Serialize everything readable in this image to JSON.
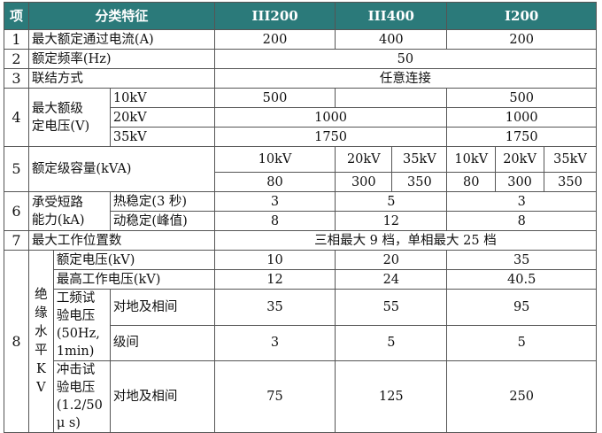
{
  "header": {
    "col_no": "项",
    "col_feature": "分类特征",
    "col_a": "III200",
    "col_b": "III400",
    "col_c": "I200"
  },
  "r1": {
    "no": "1",
    "label": "最大额定通过电流(A)",
    "a": "200",
    "b": "400",
    "c": "200"
  },
  "r2": {
    "no": "2",
    "label": "额定频率(Hz)",
    "all": "50"
  },
  "r3": {
    "no": "3",
    "label": "联结方式",
    "all": "任意连接"
  },
  "r4": {
    "no": "4",
    "label1": "最大额级",
    "label2": "定电压(V)",
    "kv10": "10kV",
    "kv20": "20kV",
    "kv35": "35kV",
    "v10a": "500",
    "v10c": "500",
    "v20bc": "1000",
    "v20c": "1000",
    "v35bc": "1750",
    "v35c": "1750"
  },
  "r5": {
    "no": "5",
    "label": "额定级容量(kVA)",
    "h1": "10kV",
    "h2": "20kV",
    "h3": "35kV",
    "h4": "10kV",
    "h5": "20kV",
    "h6": "35kV",
    "v1": "80",
    "v2": "300",
    "v3": "350",
    "v4": "80",
    "v5": "300",
    "v6": "350"
  },
  "r6": {
    "no": "6",
    "label1": "承受短路",
    "label2": "能力(kA)",
    "sub1": "热稳定(3 秒)",
    "sub2": "动稳定(峰值)",
    "a1": "3",
    "b1": "5",
    "c1": "3",
    "a2": "8",
    "b2": "12",
    "c2": "8"
  },
  "r7": {
    "no": "7",
    "label": "最大工作位置数",
    "all": "三相最大 9 档，单相最大 25 档"
  },
  "r8": {
    "no": "8",
    "vchars": [
      "绝",
      "缘",
      "水",
      "平",
      "K",
      "V"
    ],
    "s1": "额定电压(kV)",
    "s1a": "10",
    "s1b": "20",
    "s1c": "35",
    "s2": "最高工作电压(kV)",
    "s2a": "12",
    "s2b": "24",
    "s2c": "40.5",
    "s3l1": "工频试验电压",
    "s3l2": "(50Hz, 1min)",
    "s3x": "对地及相间",
    "s3a": "35",
    "s3b": "55",
    "s3c": "95",
    "s3y": "级间",
    "s3ya": "3",
    "s3yb": "5",
    "s3yc": "5",
    "s4l1": "冲击试验电压",
    "s4l2": "(1.2/50 μ s)",
    "s4x": "对地及相间",
    "s4a": "75",
    "s4b": "125",
    "s4c": "250"
  }
}
